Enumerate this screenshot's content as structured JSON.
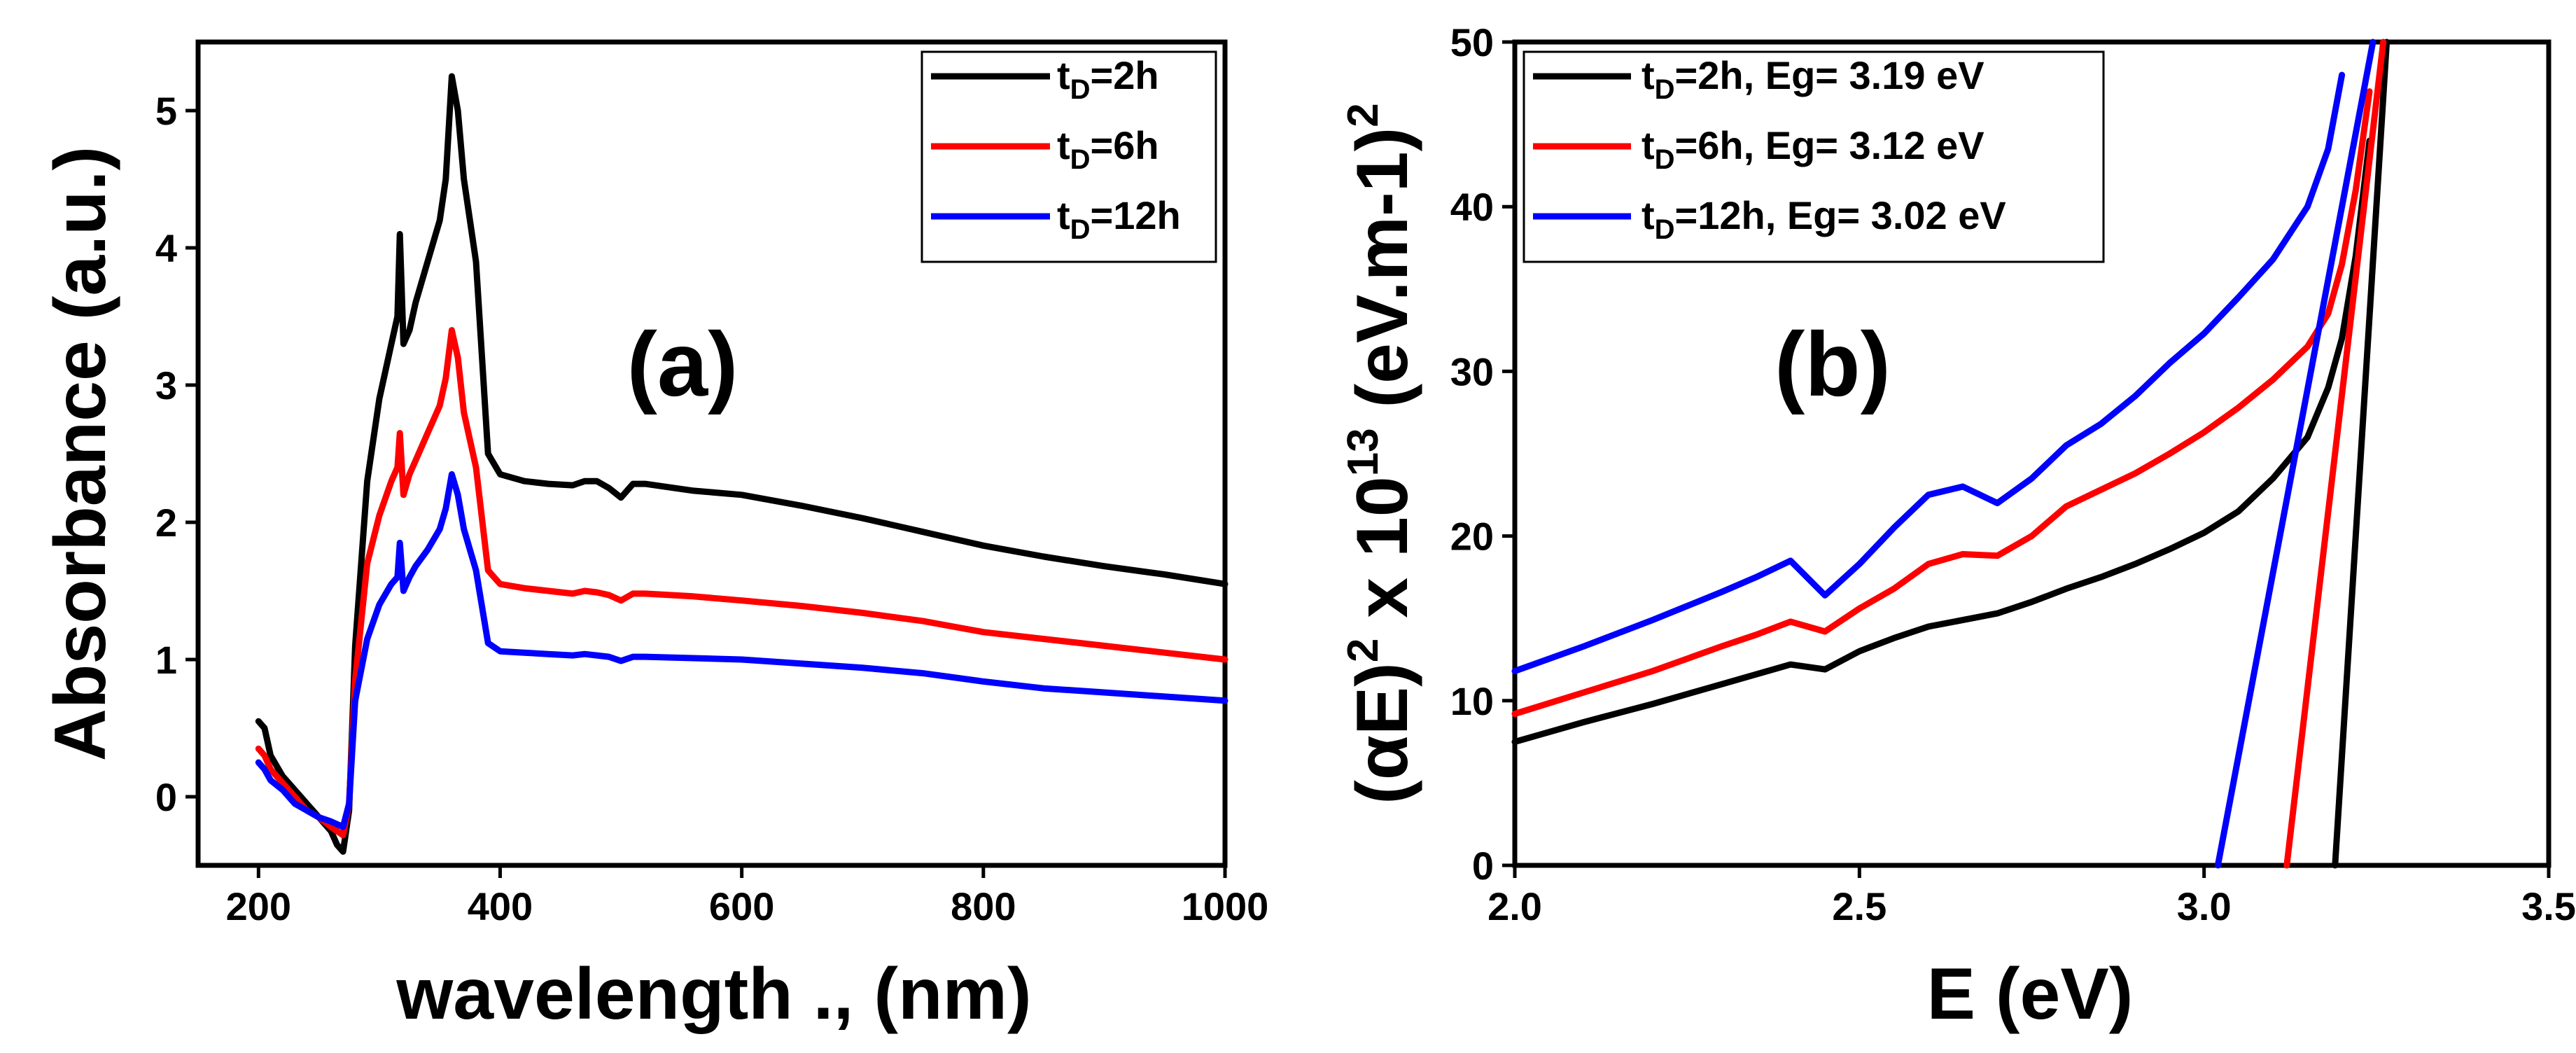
{
  "chart_data": [
    {
      "type": "line",
      "panel_label": "(a)",
      "xlabel": "wavelength ., (nm)",
      "ylabel": "Absorbance (a.u.)",
      "xlim": [
        150,
        1000
      ],
      "ylim": [
        -0.5,
        5.5
      ],
      "xticks": [
        200,
        400,
        600,
        800,
        1000
      ],
      "yticks": [
        0,
        1,
        2,
        3,
        4,
        5
      ],
      "legend": {
        "location": "top-right",
        "entries": [
          {
            "prefix": "t",
            "sub": "D",
            "suffix": "=2h"
          },
          {
            "prefix": "t",
            "sub": "D",
            "suffix": "=6h"
          },
          {
            "prefix": "t",
            "sub": "D",
            "suffix": "=12h"
          }
        ]
      },
      "series": [
        {
          "name": "tD=2h",
          "color": "#000000",
          "x": [
            200,
            205,
            210,
            220,
            230,
            240,
            250,
            260,
            265,
            270,
            275,
            280,
            290,
            300,
            310,
            315,
            317,
            320,
            325,
            330,
            340,
            350,
            355,
            360,
            365,
            370,
            380,
            390,
            400,
            420,
            440,
            460,
            470,
            480,
            490,
            500,
            510,
            520,
            560,
            600,
            650,
            700,
            750,
            800,
            850,
            900,
            950,
            1000
          ],
          "y": [
            0.55,
            0.5,
            0.3,
            0.15,
            0.05,
            -0.05,
            -0.15,
            -0.25,
            -0.35,
            -0.4,
            -0.1,
            1.1,
            2.3,
            2.9,
            3.3,
            3.5,
            4.1,
            3.3,
            3.4,
            3.6,
            3.9,
            4.2,
            4.5,
            5.25,
            5.0,
            4.5,
            3.9,
            2.5,
            2.35,
            2.3,
            2.28,
            2.27,
            2.3,
            2.3,
            2.25,
            2.18,
            2.28,
            2.28,
            2.23,
            2.2,
            2.12,
            2.03,
            1.93,
            1.83,
            1.75,
            1.68,
            1.62,
            1.55
          ]
        },
        {
          "name": "tD=6h",
          "color": "#ff0000",
          "x": [
            200,
            205,
            210,
            220,
            230,
            240,
            250,
            260,
            265,
            270,
            275,
            280,
            290,
            300,
            310,
            315,
            317,
            320,
            325,
            330,
            340,
            350,
            355,
            360,
            365,
            370,
            380,
            390,
            400,
            420,
            440,
            460,
            470,
            480,
            490,
            500,
            510,
            520,
            560,
            600,
            650,
            700,
            750,
            800,
            850,
            900,
            950,
            1000
          ],
          "y": [
            0.35,
            0.3,
            0.2,
            0.1,
            0.0,
            -0.1,
            -0.15,
            -0.22,
            -0.25,
            -0.28,
            -0.05,
            0.85,
            1.7,
            2.05,
            2.3,
            2.4,
            2.65,
            2.2,
            2.35,
            2.45,
            2.65,
            2.85,
            3.05,
            3.4,
            3.2,
            2.8,
            2.4,
            1.65,
            1.55,
            1.52,
            1.5,
            1.48,
            1.5,
            1.49,
            1.47,
            1.43,
            1.48,
            1.48,
            1.46,
            1.43,
            1.39,
            1.34,
            1.28,
            1.2,
            1.15,
            1.1,
            1.05,
            1.0
          ]
        },
        {
          "name": "tD=12h",
          "color": "#0000ff",
          "x": [
            200,
            205,
            210,
            220,
            230,
            240,
            250,
            260,
            265,
            270,
            275,
            280,
            290,
            300,
            310,
            315,
            317,
            320,
            325,
            330,
            340,
            350,
            355,
            360,
            365,
            370,
            380,
            390,
            400,
            420,
            440,
            460,
            470,
            480,
            490,
            500,
            510,
            520,
            560,
            600,
            650,
            700,
            750,
            800,
            850,
            900,
            950,
            1000
          ],
          "y": [
            0.25,
            0.2,
            0.12,
            0.05,
            -0.05,
            -0.1,
            -0.15,
            -0.18,
            -0.2,
            -0.22,
            -0.05,
            0.7,
            1.15,
            1.4,
            1.55,
            1.6,
            1.85,
            1.5,
            1.6,
            1.68,
            1.8,
            1.95,
            2.1,
            2.35,
            2.2,
            1.95,
            1.65,
            1.12,
            1.06,
            1.05,
            1.04,
            1.03,
            1.04,
            1.03,
            1.02,
            0.99,
            1.02,
            1.02,
            1.01,
            1.0,
            0.97,
            0.94,
            0.9,
            0.84,
            0.79,
            0.76,
            0.73,
            0.7
          ]
        }
      ]
    },
    {
      "type": "line",
      "panel_label": "(b)",
      "xlabel": "E (eV)",
      "ylabel": {
        "p1": "(αE)",
        "sup1": "2",
        "p2": " x 10",
        "sup2": "13",
        "p3": " (eV.m-1)",
        "sup3": "2"
      },
      "xlim": [
        2.0,
        3.5
      ],
      "ylim": [
        0,
        50
      ],
      "xticks": [
        "2.0",
        "2.5",
        "3.0",
        "3.5"
      ],
      "xtick_values": [
        2.0,
        2.5,
        3.0,
        3.5
      ],
      "yticks": [
        0,
        10,
        20,
        30,
        40,
        50
      ],
      "legend": {
        "location": "top-left",
        "entries": [
          {
            "prefix": "t",
            "sub": "D",
            "suffix": "=2h,   Eg= 3.19 eV"
          },
          {
            "prefix": "t",
            "sub": "D",
            "suffix": "=6h,   Eg= 3.12 eV"
          },
          {
            "prefix": "t",
            "sub": "D",
            "suffix": "=12h, Eg= 3.02 eV"
          }
        ]
      },
      "series": [
        {
          "name": "tD=2h",
          "color": "#000000",
          "x": [
            2.0,
            2.1,
            2.2,
            2.3,
            2.35,
            2.4,
            2.45,
            2.5,
            2.55,
            2.6,
            2.65,
            2.7,
            2.75,
            2.8,
            2.85,
            2.9,
            2.95,
            3.0,
            3.05,
            3.1,
            3.15,
            3.18,
            3.2,
            3.22,
            3.24
          ],
          "y": [
            7.5,
            8.7,
            9.8,
            11.0,
            11.6,
            12.2,
            11.9,
            13.0,
            13.8,
            14.5,
            14.9,
            15.3,
            16.0,
            16.8,
            17.5,
            18.3,
            19.2,
            20.2,
            21.5,
            23.5,
            26.0,
            29.0,
            32.0,
            37.0,
            44.0
          ]
        },
        {
          "name": "tD=6h",
          "color": "#ff0000",
          "x": [
            2.0,
            2.1,
            2.2,
            2.3,
            2.35,
            2.4,
            2.45,
            2.5,
            2.55,
            2.6,
            2.65,
            2.7,
            2.75,
            2.8,
            2.85,
            2.9,
            2.95,
            3.0,
            3.05,
            3.1,
            3.15,
            3.18,
            3.2,
            3.22,
            3.24
          ],
          "y": [
            9.2,
            10.5,
            11.8,
            13.3,
            14.0,
            14.8,
            14.2,
            15.6,
            16.8,
            18.3,
            18.9,
            18.8,
            20.0,
            21.8,
            22.8,
            23.8,
            25.0,
            26.3,
            27.8,
            29.5,
            31.5,
            33.5,
            36.5,
            41.0,
            47.0
          ]
        },
        {
          "name": "tD=12h",
          "color": "#0000ff",
          "x": [
            2.0,
            2.1,
            2.2,
            2.3,
            2.35,
            2.4,
            2.45,
            2.5,
            2.55,
            2.6,
            2.65,
            2.7,
            2.75,
            2.8,
            2.85,
            2.9,
            2.95,
            3.0,
            3.05,
            3.1,
            3.15,
            3.18,
            3.2
          ],
          "y": [
            11.8,
            13.3,
            14.9,
            16.6,
            17.5,
            18.5,
            16.4,
            18.3,
            20.5,
            22.5,
            23.0,
            22.0,
            23.5,
            25.5,
            26.8,
            28.5,
            30.5,
            32.3,
            34.5,
            36.8,
            40.0,
            43.5,
            48.0
          ]
        },
        {
          "name": "fit tD=2h",
          "color": "#000000",
          "x": [
            3.19,
            3.265
          ],
          "y": [
            0,
            50
          ]
        },
        {
          "name": "fit tD=6h",
          "color": "#ff0000",
          "x": [
            3.12,
            3.26
          ],
          "y": [
            0,
            50
          ]
        },
        {
          "name": "fit tD=12h",
          "color": "#0000ff",
          "x": [
            3.02,
            3.245
          ],
          "y": [
            0,
            50
          ]
        }
      ]
    }
  ]
}
